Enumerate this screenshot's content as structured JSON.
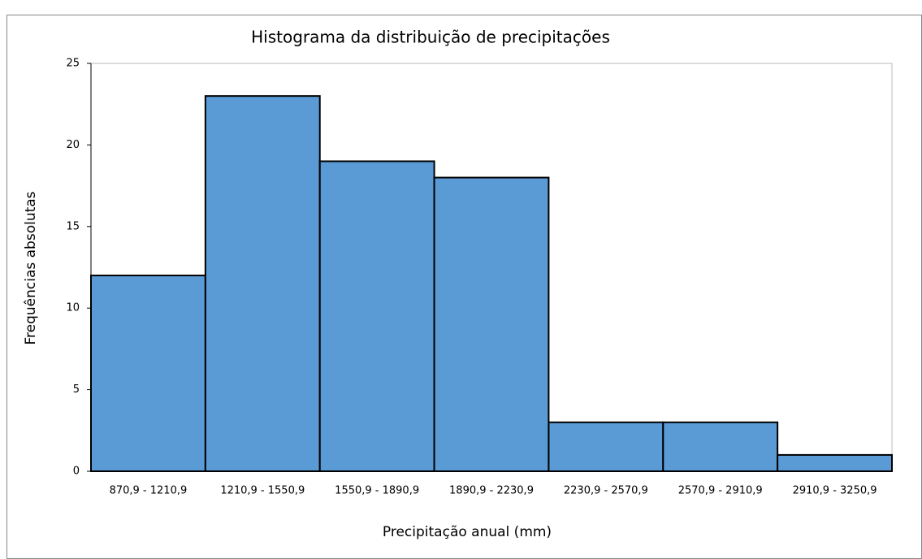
{
  "chart_data": {
    "type": "bar",
    "title": "Histograma da distribuição de precipitações",
    "xlabel": "Precipitação anual (mm)",
    "ylabel": "Frequências absolutas",
    "categories": [
      "870,9 - 1210,9",
      "1210,9 - 1550,9",
      "1550,9 - 1890,9",
      "1890,9 - 2230,9",
      "2230,9 - 2570,9",
      "2570,9 - 2910,9",
      "2910,9 - 3250,9"
    ],
    "values": [
      12,
      23,
      19,
      18,
      3,
      3,
      1
    ],
    "color": "#5b9bd5",
    "ylim": [
      0,
      25
    ],
    "yticks": [
      0,
      5,
      10,
      15,
      20,
      25
    ],
    "grid": false
  }
}
